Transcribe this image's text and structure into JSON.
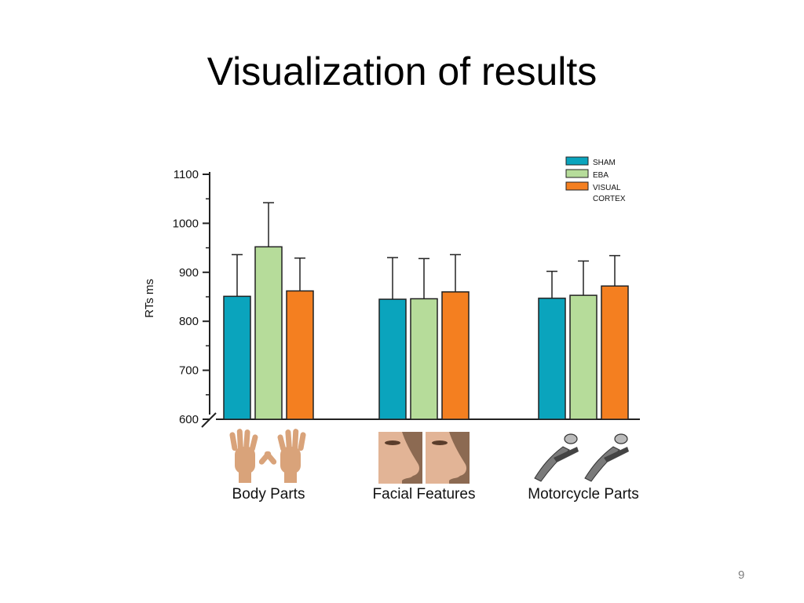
{
  "slide": {
    "title": "Visualization of results",
    "page_number": "9"
  },
  "chart_data": {
    "type": "bar",
    "title": "",
    "xlabel": "",
    "ylabel": "RTs ms",
    "ylim": [
      600,
      1100
    ],
    "yticks": [
      "600",
      "700",
      "800",
      "900",
      "1000",
      "1100"
    ],
    "categories": [
      "Body Parts",
      "Facial Features",
      "Motorcycle Parts"
    ],
    "category_icons": [
      "hands-icon",
      "nose-profile-icon",
      "motorcycle-lever-icon"
    ],
    "legend_position": "top-right",
    "grid": false,
    "error_bars": true,
    "series": [
      {
        "name": "SHAM",
        "legend_lines": [
          "SHAM"
        ],
        "color": "#0aa4bd",
        "values": [
          851,
          845,
          847
        ],
        "errors": [
          85,
          85,
          55
        ]
      },
      {
        "name": "EBA",
        "legend_lines": [
          "EBA"
        ],
        "color": "#b6dc9a",
        "values": [
          952,
          846,
          853
        ],
        "errors": [
          90,
          82,
          70
        ]
      },
      {
        "name": "VISUAL CORTEX",
        "legend_lines": [
          "VISUAL",
          "CORTEX"
        ],
        "color": "#f47f20",
        "values": [
          862,
          860,
          872
        ],
        "errors": [
          67,
          76,
          62
        ]
      }
    ]
  }
}
